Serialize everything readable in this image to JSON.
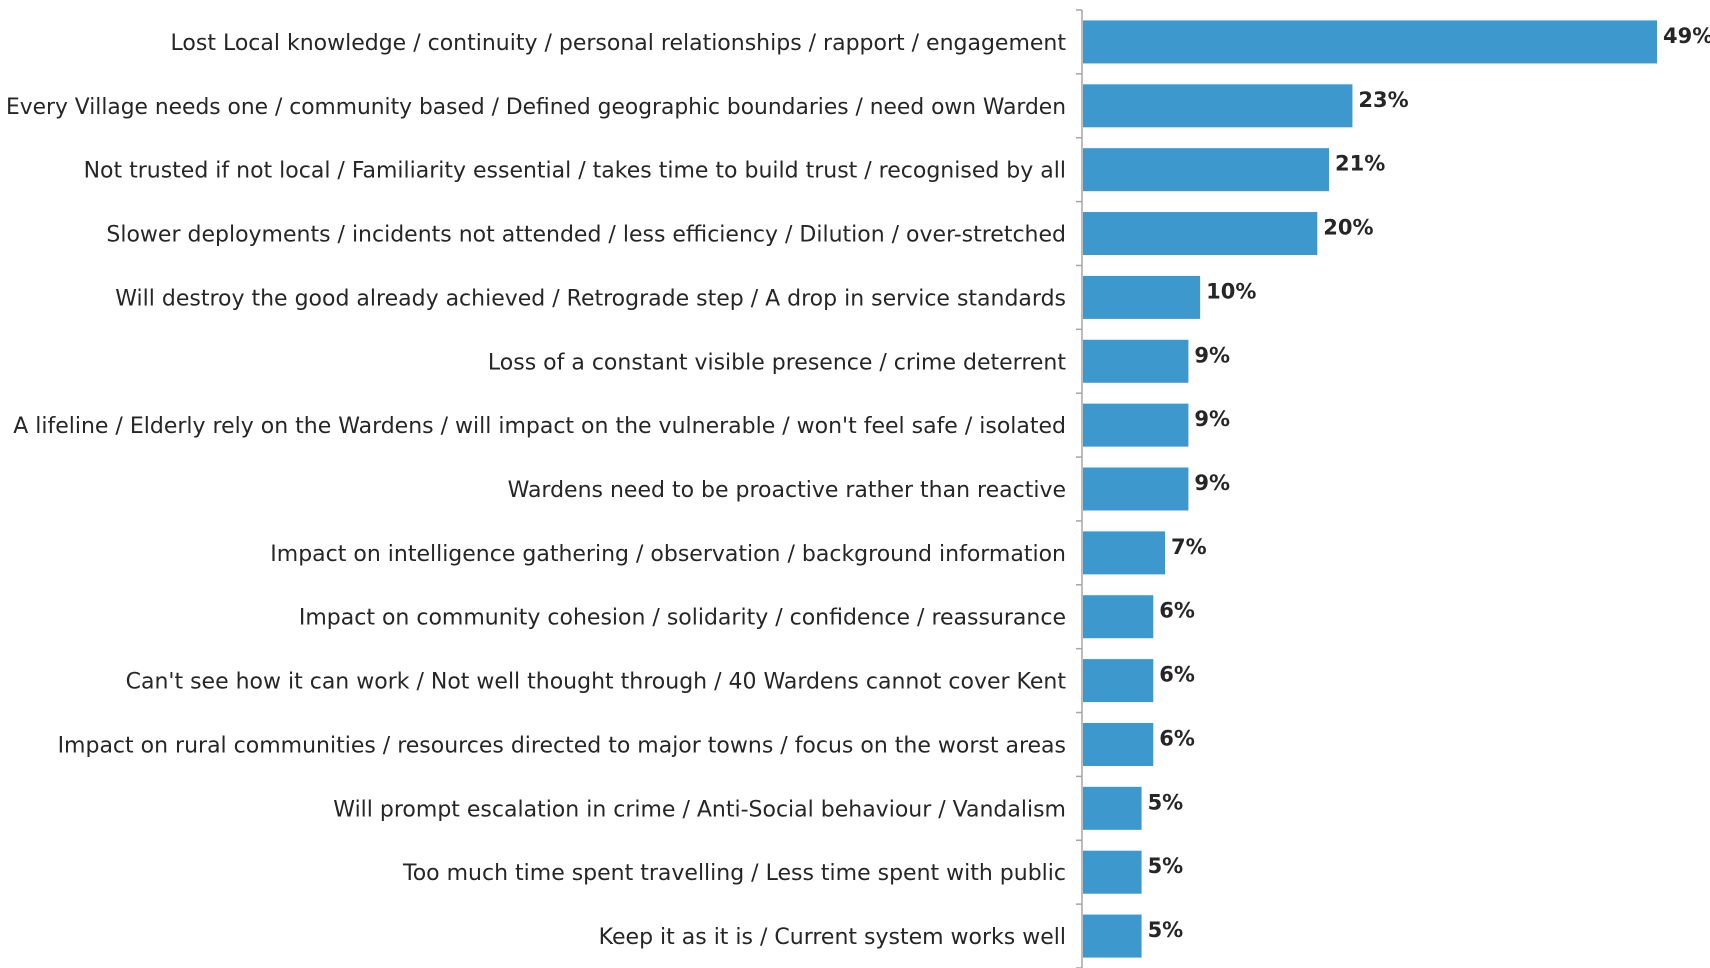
{
  "chart_data": {
    "type": "bar",
    "orientation": "horizontal",
    "categories": [
      "Lost Local knowledge / continuity / personal relationships / rapport / engagement",
      "Every Village needs one / community based / Defined geographic boundaries / need own Warden",
      "Not trusted if not local / Familiarity essential / takes time to build trust / recognised by all",
      "Slower deployments / incidents not attended / less efficiency / Dilution / over-stretched",
      "Will destroy the good already achieved / Retrograde step / A drop in service standards",
      "Loss of a constant visible presence / crime deterrent",
      "A lifeline / Elderly rely on the Wardens / will impact on the vulnerable / won't feel safe / isolated",
      "Wardens need to be proactive rather than reactive",
      "Impact on intelligence gathering / observation / background information",
      "Impact on community cohesion / solidarity / confidence / reassurance",
      "Can't see how it can work / Not well thought through / 40 Wardens cannot cover Kent",
      "Impact on rural communities / resources directed to major towns  / focus on the worst areas",
      "Will prompt escalation in crime / Anti-Social behaviour / Vandalism",
      "Too much time spent travelling / Less time spent with public",
      "Keep it as it is / Current system works well"
    ],
    "values": [
      49,
      23,
      21,
      20,
      10,
      9,
      9,
      9,
      7,
      6,
      6,
      6,
      5,
      5,
      5
    ],
    "value_labels": [
      "49%",
      "23%",
      "21%",
      "20%",
      "10%",
      "9%",
      "9%",
      "9%",
      "7%",
      "6%",
      "6%",
      "6%",
      "5%",
      "5%",
      "5%"
    ],
    "unit": "%",
    "title": "",
    "xlabel": "",
    "ylabel": "",
    "xlim": [
      0,
      49
    ],
    "grid": false,
    "legend": "none",
    "bar_color": "#3c98cd",
    "axis_color": "#a6a6a6",
    "text_color": "#262626"
  }
}
